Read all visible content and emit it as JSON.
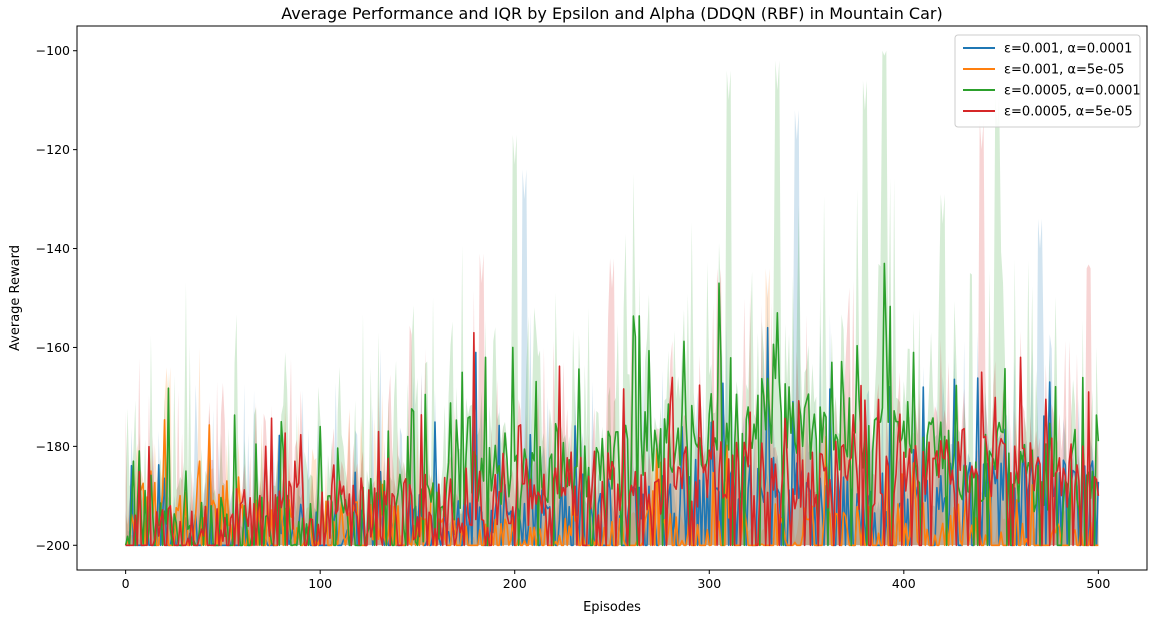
{
  "chart_data": {
    "type": "line",
    "title": "Average Performance and IQR by Epsilon and Alpha (DDQN (RBF) in Mountain Car)",
    "xlabel": "Episodes",
    "ylabel": "Average Reward",
    "xlim": [
      -25,
      525
    ],
    "ylim": [
      -205,
      -95
    ],
    "xticks": [
      0,
      100,
      200,
      300,
      400,
      500
    ],
    "yticks": [
      -200,
      -180,
      -160,
      -140,
      -120,
      -100
    ],
    "xtick_labels": [
      "0",
      "100",
      "200",
      "300",
      "400",
      "500"
    ],
    "ytick_labels": [
      "−200",
      "−180",
      "−160",
      "−140",
      "−120",
      "−100"
    ],
    "grid": false,
    "legend_position": "top-right",
    "episodes": [
      0,
      500
    ],
    "series": [
      {
        "name": "ε=0.001, α=0.0001",
        "color": "#1f77b4",
        "anchors": [
          [
            0,
            -200
          ],
          [
            40,
            -198
          ],
          [
            80,
            -197
          ],
          [
            120,
            -196
          ],
          [
            160,
            -194
          ],
          [
            200,
            -192
          ],
          [
            240,
            -190
          ],
          [
            280,
            -190
          ],
          [
            320,
            -186
          ],
          [
            360,
            -188
          ],
          [
            400,
            -190
          ],
          [
            440,
            -187
          ],
          [
            480,
            -186
          ],
          [
            500,
            -188
          ]
        ],
        "noise": 5,
        "spike_prob": 0.08,
        "spike_size": 14,
        "floor_prob": 0.35,
        "peaks": [
          [
            43,
            -179
          ],
          [
            180,
            -161
          ],
          [
            330,
            -156
          ],
          [
            410,
            -168
          ],
          [
            475,
            -167
          ]
        ],
        "iqr_extra": 10,
        "iqr_peaks": [
          [
            345,
            -118
          ],
          [
            470,
            -140
          ],
          [
            205,
            -130
          ]
        ]
      },
      {
        "name": "ε=0.001, α=5e-05",
        "color": "#ff7f0e",
        "anchors": [
          [
            0,
            -200
          ],
          [
            10,
            -190
          ],
          [
            30,
            -191
          ],
          [
            60,
            -193
          ],
          [
            100,
            -195
          ],
          [
            150,
            -196
          ],
          [
            175,
            -200
          ],
          [
            240,
            -199
          ],
          [
            300,
            -197
          ],
          [
            360,
            -196
          ],
          [
            420,
            -194
          ],
          [
            450,
            -198
          ],
          [
            480,
            -200
          ],
          [
            500,
            -200
          ]
        ],
        "noise": 5,
        "spike_prob": 0.06,
        "spike_size": 10,
        "floor_prob": 0.4,
        "peaks": [
          [
            13,
            -185
          ],
          [
            38,
            -183
          ],
          [
            52,
            -187
          ],
          [
            360,
            -178
          ]
        ],
        "iqr_extra": 8,
        "iqr_peaks": [
          [
            22,
            -170
          ],
          [
            330,
            -150
          ]
        ]
      },
      {
        "name": "ε=0.0005, α=0.0001",
        "color": "#2ca02c",
        "anchors": [
          [
            0,
            -200
          ],
          [
            30,
            -199
          ],
          [
            80,
            -197
          ],
          [
            130,
            -194
          ],
          [
            160,
            -191
          ],
          [
            200,
            -184
          ],
          [
            250,
            -182
          ],
          [
            300,
            -177
          ],
          [
            330,
            -172
          ],
          [
            360,
            -178
          ],
          [
            390,
            -176
          ],
          [
            420,
            -183
          ],
          [
            460,
            -185
          ],
          [
            500,
            -188
          ]
        ],
        "noise": 8,
        "spike_prob": 0.07,
        "spike_size": 16,
        "floor_prob": 0.12,
        "peaks": [
          [
            4,
            -183
          ],
          [
            80,
            -175
          ],
          [
            100,
            -176
          ],
          [
            185,
            -162
          ],
          [
            199,
            -160
          ],
          [
            305,
            -147
          ],
          [
            335,
            -153
          ],
          [
            390,
            -143
          ],
          [
            405,
            -161
          ]
        ],
        "iqr_extra": 14,
        "iqr_peaks": [
          [
            200,
            -123
          ],
          [
            310,
            -110
          ],
          [
            335,
            -108
          ],
          [
            390,
            -101
          ],
          [
            448,
            -115
          ],
          [
            380,
            -112
          ],
          [
            420,
            -135
          ]
        ]
      },
      {
        "name": "ε=0.0005, α=5e-05",
        "color": "#d62728",
        "anchors": [
          [
            0,
            -200
          ],
          [
            30,
            -197
          ],
          [
            80,
            -194
          ],
          [
            130,
            -193
          ],
          [
            180,
            -191
          ],
          [
            220,
            -188
          ],
          [
            260,
            -188
          ],
          [
            300,
            -186
          ],
          [
            340,
            -186
          ],
          [
            380,
            -186
          ],
          [
            420,
            -183
          ],
          [
            460,
            -184
          ],
          [
            500,
            -187
          ]
        ],
        "noise": 7,
        "spike_prob": 0.07,
        "spike_size": 14,
        "floor_prob": 0.18,
        "peaks": [
          [
            72,
            -180
          ],
          [
            130,
            -177
          ],
          [
            179,
            -157
          ],
          [
            440,
            -165
          ],
          [
            460,
            -162
          ],
          [
            495,
            -169
          ]
        ],
        "iqr_extra": 11,
        "iqr_peaks": [
          [
            183,
            -147
          ],
          [
            250,
            -148
          ],
          [
            440,
            -120
          ],
          [
            305,
            -150
          ],
          [
            495,
            -150
          ]
        ]
      }
    ]
  }
}
